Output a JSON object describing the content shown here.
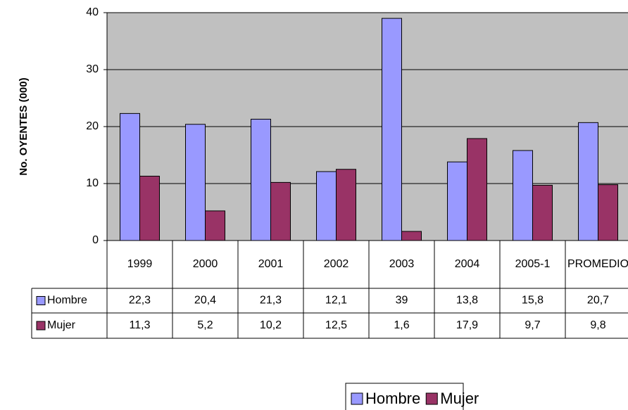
{
  "chart_data": {
    "type": "bar",
    "y_label": "No. OYENTES (000)",
    "categories": [
      "1999",
      "2000",
      "2001",
      "2002",
      "2003",
      "2004",
      "2005-1",
      "PROMEDIO"
    ],
    "series": [
      {
        "name": "Hombre",
        "color": "#9999ff",
        "values": [
          22.3,
          20.4,
          21.3,
          12.1,
          39,
          13.8,
          15.8,
          20.7
        ],
        "value_labels": [
          "22,3",
          "20,4",
          "21,3",
          "12,1",
          "39",
          "13,8",
          "15,8",
          "20,7"
        ]
      },
      {
        "name": "Mujer",
        "color": "#993366",
        "values": [
          11.3,
          5.2,
          10.2,
          12.5,
          1.6,
          17.9,
          9.7,
          9.8
        ],
        "value_labels": [
          "11,3",
          "5,2",
          "10,2",
          "12,5",
          "1,6",
          "17,9",
          "9,7",
          "9,8"
        ]
      }
    ],
    "ylim": [
      0,
      40
    ],
    "yticks": [
      0,
      10,
      20,
      30,
      40
    ],
    "grid": true,
    "plot_background": "#c0c0c0"
  }
}
